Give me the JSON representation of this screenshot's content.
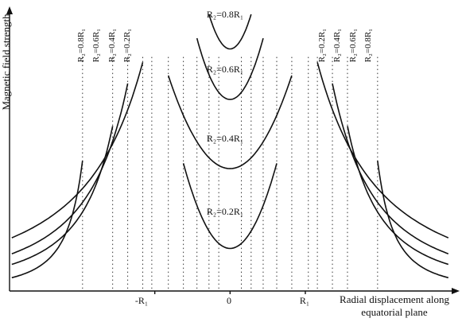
{
  "chart_data": {
    "type": "line",
    "ylabel": "Magnetic field strength",
    "xlabel_lines": [
      "Radial displacement along",
      "equatorial plane"
    ],
    "x_ticks": [
      "-R₁",
      "0",
      "R₁"
    ],
    "guide_x": [
      -1.96,
      -1.56,
      -1.36,
      -1.16,
      -1.04,
      -0.82,
      -0.62,
      -0.44,
      -0.28,
      -0.15,
      0.15,
      0.28,
      0.44,
      0.62,
      0.82,
      1.04,
      1.16,
      1.36,
      1.56,
      1.96
    ],
    "outer_labels_left": [
      "R₂=0.8R₁",
      "R₂=0.6R₁",
      "R₂=0.4R₁",
      "R₂=0.2R₁"
    ],
    "outer_labels_right": [
      "R₂=0.2R₁",
      "R₂=0.4R₁",
      "R₂=0.6R₁",
      "R₂=0.8R₁"
    ],
    "series": [
      {
        "name": "R₂=0.2R₁",
        "inner": {
          "x_end": 0.62,
          "y_min": 0.16,
          "y_end": 0.48
        },
        "outer": {
          "x_start": 1.96,
          "y_start": 0.49,
          "x_end": 2.9,
          "y_end": 0.05
        }
      },
      {
        "name": "R₂=0.4R₁",
        "inner": {
          "x_end": 0.82,
          "y_min": 0.46,
          "y_end": 0.81
        },
        "outer": {
          "x_start": 1.56,
          "y_start": 0.62,
          "x_end": 2.9,
          "y_end": 0.1
        }
      },
      {
        "name": "R₂=0.6R₁",
        "inner": {
          "x_end": 0.44,
          "y_min": 0.72,
          "y_end": 0.95
        },
        "outer": {
          "x_start": 1.36,
          "y_start": 0.78,
          "x_end": 2.9,
          "y_end": 0.14
        }
      },
      {
        "name": "R₂=0.8R₁",
        "inner": {
          "x_end": 0.28,
          "y_min": 0.91,
          "y_end": 1.04
        },
        "outer": {
          "x_start": 1.16,
          "y_start": 0.86,
          "x_end": 2.9,
          "y_end": 0.2
        }
      }
    ],
    "xlim": [
      -2.93,
      3.05
    ],
    "ylim": [
      0,
      1.07
    ]
  }
}
